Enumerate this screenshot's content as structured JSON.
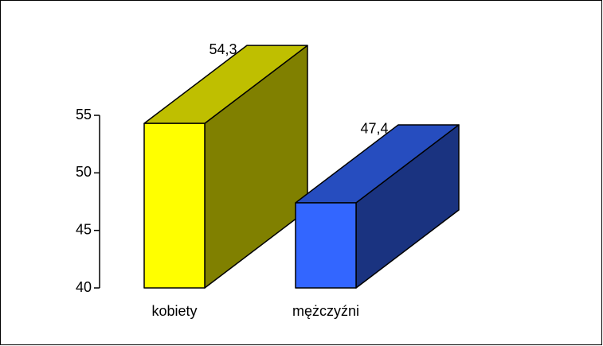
{
  "chart_data": {
    "type": "bar3d",
    "categories": [
      "kobiety",
      "mężczyźni"
    ],
    "values": [
      54.3,
      47.4
    ],
    "value_labels": [
      "54,3",
      "47,4"
    ],
    "colors": [
      "#ffff00",
      "#3366ff"
    ],
    "ylim": [
      40,
      55
    ],
    "yticks": [
      40,
      45,
      50,
      55
    ]
  }
}
